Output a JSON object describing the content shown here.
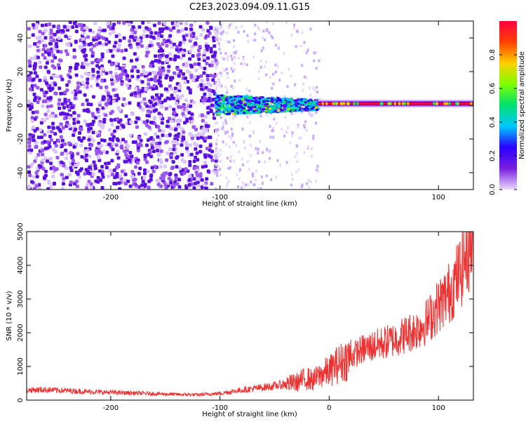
{
  "title": "C2E3.2023.094.09.11.G15",
  "chart_data": [
    {
      "type": "heatmap",
      "xlabel": "Height of straight line (km)",
      "ylabel": "Frequency (Hz)",
      "xlim": [
        -277,
        132
      ],
      "ylim": [
        -50,
        50
      ],
      "xticks": [
        -200,
        -100,
        0,
        100
      ],
      "yticks": [
        -40,
        -20,
        0,
        20,
        40
      ],
      "colorbar": {
        "label": "Normalized spectral amplitude",
        "range": [
          0.0,
          1.0
        ],
        "ticks": [
          "0.0",
          "0.2",
          "0.4",
          "0.6",
          "0.8"
        ],
        "colormap": [
          "#e9d8ff",
          "#7a1fe0",
          "#2a00ff",
          "#00c8ff",
          "#00e070",
          "#7dff00",
          "#ffd000",
          "#ff4000",
          "#ff0040"
        ]
      },
      "features": [
        {
          "name": "noise",
          "x_range": [
            -277,
            -105
          ],
          "density": 0.9
        },
        {
          "name": "transition",
          "x_range": [
            -105,
            -10
          ],
          "center_freq": 0,
          "bandwidth_hz": 6
        },
        {
          "name": "tone",
          "x_range": [
            -10,
            132
          ],
          "center_freq": 1,
          "peak_amplitude": 0.95
        }
      ]
    },
    {
      "type": "line",
      "xlabel": "Height of straight line (km)",
      "ylabel": "SNR (10 * v/v)",
      "xlim": [
        -277,
        132
      ],
      "ylim": [
        0,
        5000
      ],
      "xticks": [
        -200,
        -100,
        0,
        100
      ],
      "yticks": [
        0,
        1000,
        2000,
        3000,
        4000,
        5000
      ],
      "color": "#ee3030",
      "series": [
        {
          "x": [
            -277,
            -260,
            -240,
            -220,
            -200,
            -180,
            -160,
            -140,
            -120,
            -100,
            -90,
            -80,
            -70,
            -60,
            -50,
            -40,
            -30,
            -25,
            -20,
            -15,
            -10,
            -5,
            0,
            5,
            10,
            20,
            30,
            40,
            50,
            60,
            70,
            80,
            90,
            100,
            110,
            120,
            125,
            132
          ],
          "y": [
            300,
            310,
            280,
            250,
            230,
            210,
            190,
            170,
            160,
            200,
            250,
            300,
            340,
            380,
            420,
            480,
            520,
            600,
            650,
            580,
            700,
            800,
            850,
            1000,
            1100,
            1300,
            1500,
            1600,
            1700,
            1800,
            1950,
            2100,
            2350,
            2800,
            3200,
            3800,
            4300,
            4800
          ]
        }
      ]
    }
  ]
}
